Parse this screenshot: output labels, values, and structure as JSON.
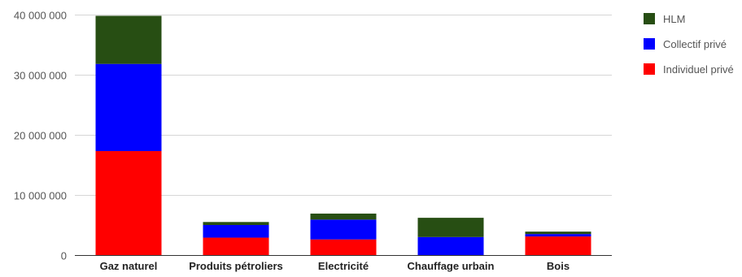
{
  "chart_data": {
    "type": "bar",
    "stacked": true,
    "categories": [
      "Gaz naturel",
      "Produits pétroliers",
      "Electricité",
      "Chauffage urbain",
      "Bois"
    ],
    "series": [
      {
        "name": "Individuel privé",
        "color": "#ff0000",
        "values": [
          17300000,
          2900000,
          2600000,
          0,
          3100000
        ]
      },
      {
        "name": "Collectif privé",
        "color": "#0000ff",
        "values": [
          14500000,
          2100000,
          3300000,
          3000000,
          400000
        ]
      },
      {
        "name": "HLM",
        "color": "#274e13",
        "values": [
          8000000,
          500000,
          1000000,
          3200000,
          400000
        ]
      }
    ],
    "ylim": [
      0,
      40000000
    ],
    "yticks": [
      {
        "value": 0,
        "label": "0"
      },
      {
        "value": 10000000,
        "label": "10 000 000"
      },
      {
        "value": 20000000,
        "label": "20 000 000"
      },
      {
        "value": 30000000,
        "label": "30 000 000"
      },
      {
        "value": 40000000,
        "label": "40 000 000"
      }
    ],
    "legend": {
      "placement": "top-right",
      "order": [
        "HLM",
        "Collectif privé",
        "Individuel privé"
      ]
    },
    "grid": true
  }
}
